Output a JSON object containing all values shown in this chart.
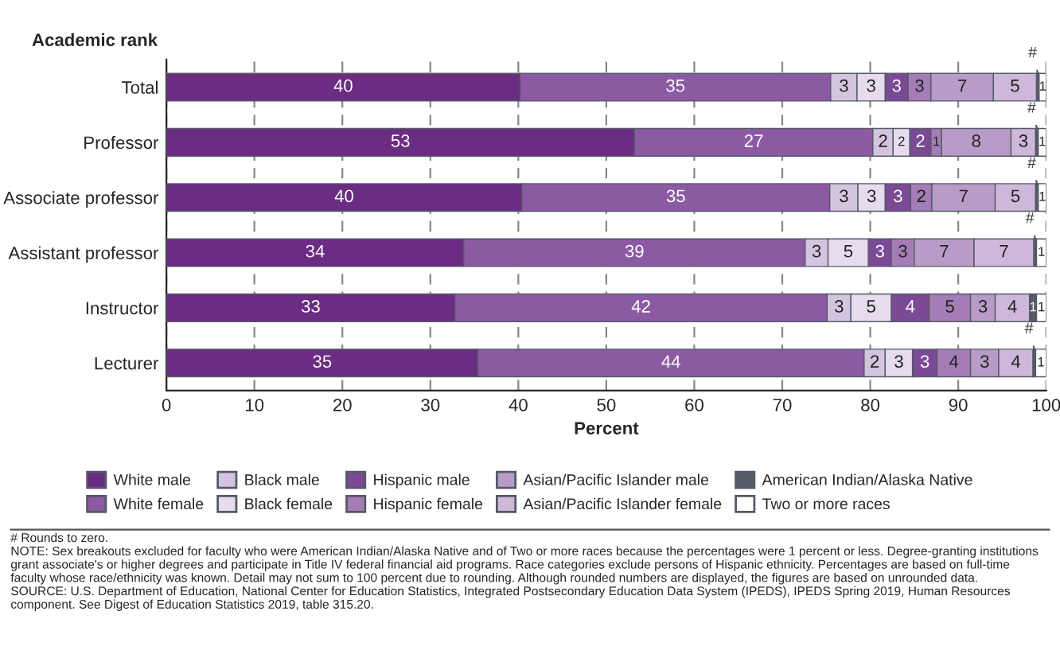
{
  "chart_data": {
    "type": "bar",
    "orientation": "horizontal",
    "stacked": true,
    "ylabel": "Academic rank",
    "xlabel": "Percent",
    "categories": [
      "Total",
      "Professor",
      "Associate professor",
      "Assistant professor",
      "Instructor",
      "Lecturer"
    ],
    "series": [
      {
        "name": "White male",
        "color": "#6b2c83",
        "values": [
          40.2,
          53.2,
          40.4,
          33.8,
          32.8,
          35.4
        ],
        "value_labels": [
          "40",
          "53",
          "40",
          "34",
          "33",
          "35"
        ]
      },
      {
        "name": "White female",
        "color": "#8c5aa3",
        "values": [
          35.3,
          27.1,
          35.0,
          38.8,
          42.3,
          43.9
        ],
        "value_labels": [
          "35",
          "27",
          "35",
          "39",
          "42",
          "44"
        ]
      },
      {
        "name": "Black male",
        "color": "#d3c5e0",
        "values": [
          3.0,
          2.3,
          3.2,
          2.6,
          2.7,
          2.4
        ],
        "value_labels": [
          "3",
          "2",
          "3",
          "3",
          "3",
          "2"
        ]
      },
      {
        "name": "Black female",
        "color": "#e6dcee",
        "values": [
          3.2,
          1.9,
          3.1,
          4.6,
          4.6,
          3.1
        ],
        "value_labels": [
          "3",
          "2",
          "3",
          "5",
          "5",
          "3"
        ]
      },
      {
        "name": "Hispanic male",
        "color": "#7a4a94",
        "values": [
          2.6,
          2.4,
          2.9,
          2.6,
          4.3,
          2.8
        ],
        "value_labels": [
          "3",
          "2",
          "3",
          "3",
          "4",
          "3"
        ]
      },
      {
        "name": "Hispanic female",
        "color": "#a47db6",
        "values": [
          2.6,
          1.2,
          2.4,
          2.6,
          4.7,
          3.8
        ],
        "value_labels": [
          "3",
          "1",
          "2",
          "3",
          "5",
          "4"
        ]
      },
      {
        "name": "Asian/Pacific Islander male",
        "color": "#b89cc7",
        "values": [
          7.1,
          7.9,
          7.2,
          6.8,
          2.8,
          3.2
        ],
        "value_labels": [
          "7",
          "8",
          "7",
          "7",
          "3",
          "3"
        ]
      },
      {
        "name": "Asian/Pacific Islander female",
        "color": "#cdb8d9",
        "values": [
          4.9,
          2.8,
          4.6,
          6.8,
          3.9,
          3.9
        ],
        "value_labels": [
          "5",
          "3",
          "5",
          "7",
          "4",
          "4"
        ]
      },
      {
        "name": "American Indian/Alaska Native",
        "color": "#555a66",
        "values": [
          0.3,
          0.3,
          0.3,
          0.3,
          0.8,
          0.3
        ],
        "value_labels": [
          "#",
          "#",
          "#",
          "#",
          "1",
          "#"
        ]
      },
      {
        "name": "Two or more races",
        "color": "#ffffff",
        "values": [
          0.8,
          0.9,
          0.9,
          1.1,
          1.1,
          1.2
        ],
        "value_labels": [
          "1",
          "1",
          "1",
          "1",
          "1",
          "1"
        ]
      }
    ],
    "xlim": [
      0,
      100
    ],
    "xticks": [
      0,
      10,
      20,
      30,
      40,
      50,
      60,
      70,
      80,
      90,
      100
    ],
    "grid": "x",
    "legend": "bottom",
    "annotations": [
      "# Rounds to zero.",
      "NOTE: Sex breakouts excluded for faculty who were American Indian/Alaska Native and of Two or more races because the percentages were 1 percent or less. Degree-granting institutions grant associate's or higher degrees and participate in Title IV federal financial aid programs. Race categories exclude persons of Hispanic ethnicity. Percentages are based on full-time faculty whose race/ethnicity was known. Detail may not sum to 100 percent due to rounding. Although rounded numbers are displayed, the figures are based on unrounded data.",
      "SOURCE: U.S. Department of Education, National Center for Education Statistics, Integrated Postsecondary Education Data System (IPEDS), IPEDS Spring 2019, Human Resources component. See Digest of Education Statistics 2019, table 315.20."
    ]
  }
}
